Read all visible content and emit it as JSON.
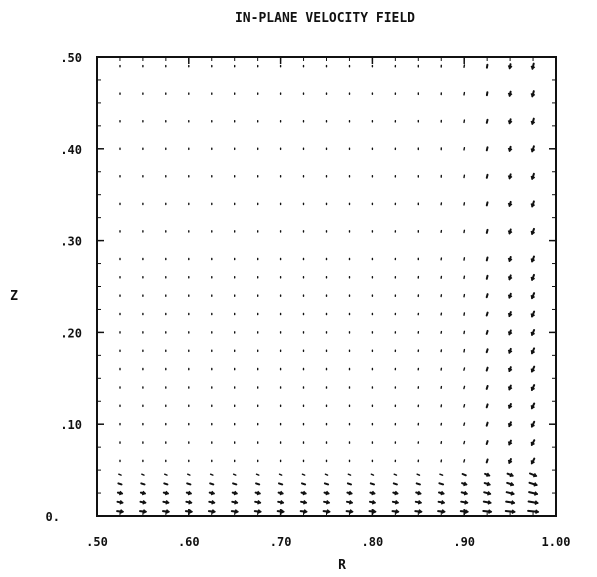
{
  "chart_data": {
    "type": "quiver",
    "title": "IN-PLANE VELOCITY FIELD",
    "xlabel": "R",
    "ylabel": "Z",
    "xlim": [
      0.5,
      1.0
    ],
    "ylim": [
      0.0,
      0.5
    ],
    "x_ticks": [
      0.5,
      0.6,
      0.7,
      0.8,
      0.9,
      1.0
    ],
    "x_tick_labels": [
      ".50",
      ".60",
      ".70",
      ".80",
      ".90",
      "1.00"
    ],
    "y_ticks": [
      0.0,
      0.1,
      0.2,
      0.3,
      0.4,
      0.5
    ],
    "y_tick_labels": [
      "0.",
      ".10",
      ".20",
      ".30",
      ".40",
      ".50"
    ],
    "grid": false,
    "vector_grid": {
      "r": [
        0.525,
        0.55,
        0.575,
        0.6,
        0.625,
        0.65,
        0.675,
        0.7,
        0.725,
        0.75,
        0.775,
        0.8,
        0.825,
        0.85,
        0.875,
        0.9,
        0.925,
        0.95,
        0.975
      ],
      "z": [
        0.005,
        0.015,
        0.025,
        0.035,
        0.045,
        0.06,
        0.08,
        0.1,
        0.12,
        0.14,
        0.16,
        0.18,
        0.2,
        0.22,
        0.24,
        0.26,
        0.28,
        0.31,
        0.34,
        0.37,
        0.4,
        0.43,
        0.46,
        0.49
      ]
    },
    "color": "#111111"
  }
}
